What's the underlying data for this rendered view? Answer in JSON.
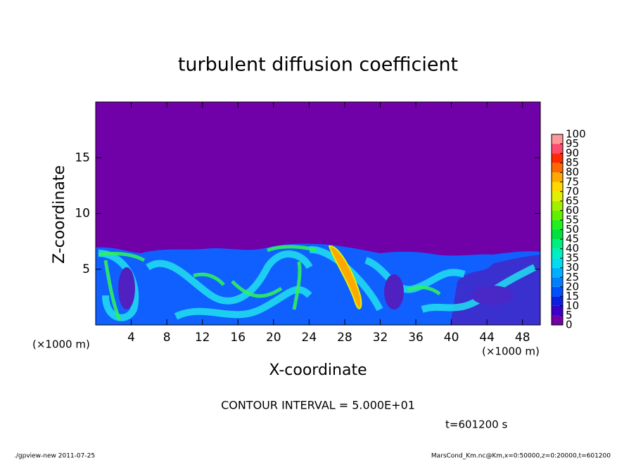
{
  "chart_data": {
    "type": "heatmap",
    "title": "turbulent diffusion coefficient",
    "x_label": "X-coordinate",
    "y_label": "Z-coordinate",
    "x_unit": "(×1000 m)",
    "y_unit": "(×1000 m)",
    "xlim": [
      0,
      50
    ],
    "xticks": [
      4,
      8,
      12,
      16,
      20,
      24,
      28,
      32,
      36,
      40,
      44,
      48
    ],
    "ylim": [
      0,
      20
    ],
    "yticks": [
      5,
      10,
      15
    ],
    "colorbar": {
      "levels": [
        0,
        5,
        10,
        15,
        20,
        25,
        30,
        35,
        40,
        45,
        50,
        55,
        60,
        65,
        70,
        75,
        80,
        85,
        90,
        95,
        100
      ],
      "colors": [
        "#7000a8",
        "#3a00c8",
        "#0a20e0",
        "#0050ff",
        "#0080ff",
        "#00b0ff",
        "#00dcf0",
        "#00f0c0",
        "#00f080",
        "#00e040",
        "#20f020",
        "#60f000",
        "#a0f000",
        "#e0f000",
        "#ffd800",
        "#ffa800",
        "#ff6800",
        "#ff2800",
        "#ff4c6c",
        "#ff9898"
      ]
    },
    "contour_interval": "CONTOUR INTERVAL = 5.000E+01",
    "time": "t=601200 s",
    "footer_left": "./gpview-new  2011-07-25",
    "footer_right": "MarsCond_Km.nc@Km,x=0:50000,z=0:20000,t=601200"
  }
}
